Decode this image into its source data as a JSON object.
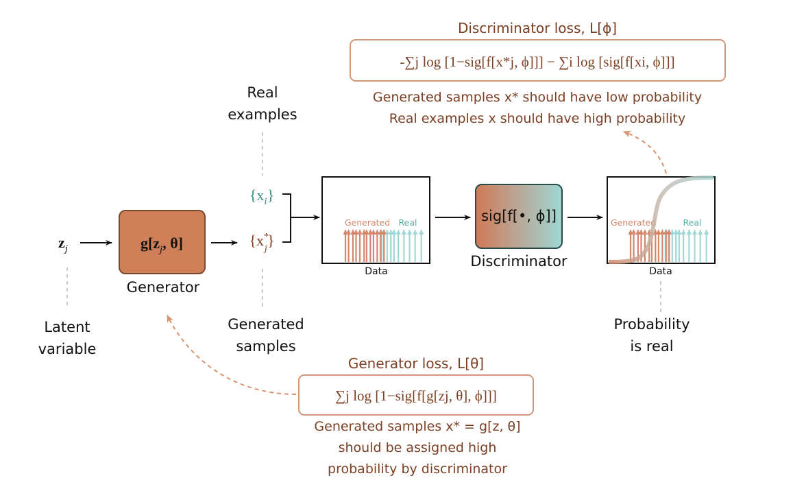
{
  "colors": {
    "brown_text": "#7a3f24",
    "generator_fill": "#cf8058",
    "generator_stroke": "#7a4a30",
    "loss_box_stroke": "#d2967a",
    "teal_text": "#3d8a80",
    "generated_arrows": "#d4876a",
    "real_arrows": "#9fd8d6",
    "sigmoid_curve": "#c8c2b8",
    "dashed_arrow": "#d8936f",
    "dashed_guide": "#c9c9c9"
  },
  "nodes": {
    "latent_symbol": "z",
    "latent_subscript": "j",
    "latent_label_line1": "Latent",
    "latent_label_line2": "variable",
    "generator_expr": "g[z",
    "generator_expr_sub": "j",
    "generator_expr_rest": ", θ]",
    "generator_label": "Generator",
    "real_set": "{x",
    "real_set_sub": "i",
    "real_set_close": "}",
    "generated_set": "{x",
    "generated_set_sup": "*",
    "generated_set_sub": "j",
    "generated_set_close": "}",
    "real_examples_line1": "Real",
    "real_examples_line2": "examples",
    "generated_samples_line1": "Generated",
    "generated_samples_line2": "samples",
    "discriminator_expr": "sig[f[•, ϕ]]",
    "discriminator_label": "Discriminator",
    "probability_line1": "Probability",
    "probability_line2": "is real"
  },
  "plot_left": {
    "generated_label": "Generated",
    "real_label": "Real",
    "xlabel": "Data",
    "generated_samples": [
      0.1,
      0.15,
      0.22,
      0.27,
      0.33,
      0.4,
      0.44,
      0.5,
      0.55,
      0.61,
      0.67,
      0.72
    ],
    "real_samples": [
      0.66,
      0.71,
      0.77,
      0.83,
      0.88,
      0.95,
      1.04,
      1.13,
      1.22,
      1.32
    ]
  },
  "plot_right": {
    "generated_label": "Generated",
    "real_label": "Real",
    "xlabel": "Data",
    "generated_samples": [
      0.1,
      0.15,
      0.22,
      0.27,
      0.33,
      0.4,
      0.44,
      0.5,
      0.55,
      0.61,
      0.67,
      0.72
    ],
    "real_samples": [
      0.66,
      0.71,
      0.77,
      0.83,
      0.88,
      0.95,
      1.04,
      1.13,
      1.22,
      1.32
    ]
  },
  "discriminator_loss": {
    "title": "Discriminator loss, L[ϕ]",
    "formula": "-∑j log [1−sig[f[x*j, ϕ]]] − ∑i log [sig[f[xi, ϕ]]]",
    "note_line1": "Generated samples x* should have low probability",
    "note_line2": "Real examples x should have high probability"
  },
  "generator_loss": {
    "title": "Generator loss, L[θ]",
    "formula": "∑j log [1−sig[f[g[zj, θ], ϕ]]]",
    "note_line1": "Generated samples x* = g[z, θ]",
    "note_line2": "should be assigned high",
    "note_line3": "probability by discriminator"
  }
}
